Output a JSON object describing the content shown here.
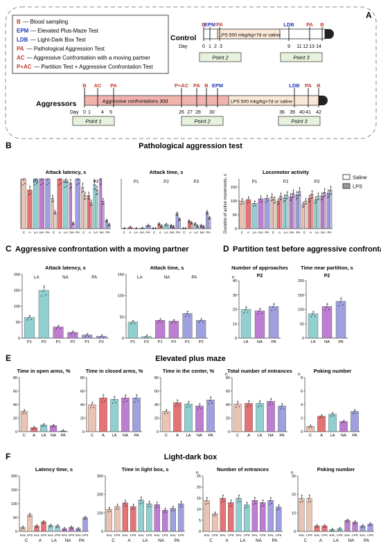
{
  "panel_letters": [
    "A",
    "B",
    "C",
    "D",
    "E",
    "F"
  ],
  "legend": [
    {
      "abbr": "B",
      "text": "— Blood sampling",
      "color": "#c0392b"
    },
    {
      "abbr": "EPM",
      "text": "— Elevated Plus-Maze Test",
      "color": "#2237b8"
    },
    {
      "abbr": "LDB",
      "text": "— Light-Dark Box Test",
      "color": "#2237b8"
    },
    {
      "abbr": "PA",
      "text": "— Pathological Aggression Test",
      "color": "#c0392b"
    },
    {
      "abbr": "AC",
      "text": "— Aggressive Confrontation with a moving partner",
      "color": "#c0392b"
    },
    {
      "abbr": "P+AC",
      "text": "— Partition Test + Aggressive Confrontation Test",
      "color": "#c0392b"
    }
  ],
  "control": {
    "label": "Control",
    "day_label": "Day",
    "top_marks": [
      "B",
      "EPM",
      "PA",
      "LDB",
      "PA",
      "B"
    ],
    "lps_text": "LPS 500 mkg/kg×7d or saline",
    "days": [
      "0",
      "1",
      "2",
      "3",
      "9",
      "11",
      "12",
      "13",
      "14"
    ],
    "points": [
      "Point 2",
      "Point 3"
    ]
  },
  "aggressors": {
    "label": "Aggressors",
    "day_label": "Day",
    "top_marks": [
      "B",
      "AC",
      "PA",
      "P+AC",
      "PA",
      "B",
      "EPM",
      "LDB",
      "PA",
      "B"
    ],
    "bar_text": "Aggressive confrontations 30d",
    "lps_text": "LPS 500 mkg/kg×7d or saline",
    "days": [
      "0",
      "1",
      "4",
      "5",
      "26",
      "27",
      "28",
      "30",
      "36",
      "39",
      "40",
      "41",
      "42"
    ],
    "points": [
      "Point 1",
      "Point 2",
      "Point 3"
    ]
  },
  "section_titles": {
    "B": "Pathological aggression test",
    "C": "Aggressive confrontation with a moving partner",
    "D": "Partition test before aggressive confrontation",
    "E": "Elevated plus maze",
    "F": "Light-dark box"
  },
  "colors": {
    "C": "#e8b8a6",
    "A": "#e05a5e",
    "LA": "#7ec7c9",
    "NA": "#b266c9",
    "PA": "#8e8fd8",
    "saline_legend": "#ffffff",
    "lps_legend": "#999999",
    "dashed_border": "#888888",
    "green_box": "#e6f2de",
    "pink_bar": "#f2b3ad",
    "lps_box": "#fbe7d6"
  },
  "legend_B": {
    "saline": "Saline",
    "lps": "LPS"
  },
  "chart_data": [
    {
      "id": "B1",
      "type": "bar",
      "title": "Attack latency, s",
      "groups": [
        "P1",
        "P2",
        "P3"
      ],
      "categories": [
        "C",
        "A",
        "LA",
        "NA",
        "PA",
        "C",
        "A",
        "LA",
        "NA",
        "PA",
        "C",
        "A",
        "LA",
        "NA",
        "PA"
      ],
      "series": [
        {
          "name": "Saline",
          "values": [
            180,
            140,
            180,
            180,
            180,
            110,
            180,
            170,
            165,
            180,
            150,
            120,
            160,
            180,
            30
          ]
        },
        {
          "name": "LPS",
          "values": [
            null,
            null,
            null,
            null,
            null,
            60,
            null,
            null,
            20,
            null,
            120,
            95,
            140,
            100,
            15
          ]
        }
      ],
      "ylim": [
        0,
        180
      ]
    },
    {
      "id": "B2",
      "type": "bar",
      "title": "Attack time, s",
      "groups": [
        "P1",
        "P2",
        "P3"
      ],
      "categories": [
        "C",
        "A",
        "LA",
        "NA",
        "PA",
        "C",
        "A",
        "LA",
        "NA",
        "PA",
        "C",
        "A",
        "LA",
        "NA",
        "PA"
      ],
      "series": [
        {
          "name": "Saline",
          "values": [
            0,
            5,
            0,
            2,
            12,
            0,
            18,
            15,
            12,
            55,
            0,
            28,
            18,
            12,
            60
          ]
        },
        {
          "name": "LPS",
          "values": [
            null,
            null,
            null,
            null,
            null,
            0,
            10,
            null,
            8,
            35,
            0,
            22,
            10,
            8,
            40
          ]
        }
      ],
      "ylim": [
        0,
        180
      ]
    },
    {
      "id": "B3",
      "type": "bar",
      "title": "Locomotor activity",
      "ylabel": "Duration of active movements, s",
      "groups": [
        "P1",
        "P2",
        "P3"
      ],
      "categories": [
        "C",
        "A",
        "LA",
        "NA",
        "PA",
        "C",
        "A",
        "LA",
        "NA",
        "PA",
        "C",
        "A",
        "LA",
        "NA",
        "PA"
      ],
      "series": [
        {
          "name": "Saline",
          "values": [
            100,
            105,
            92,
            108,
            110,
            115,
            100,
            112,
            115,
            122,
            88,
            110,
            105,
            118,
            128
          ]
        },
        {
          "name": "LPS",
          "values": [
            null,
            null,
            null,
            null,
            null,
            105,
            118,
            122,
            128,
            135,
            100,
            125,
            118,
            132,
            140
          ]
        }
      ],
      "ylim": [
        0,
        180
      ]
    },
    {
      "id": "C1",
      "type": "bar",
      "title": "Attack latency, s",
      "categories": [
        "P1",
        "P2",
        "P1",
        "P2",
        "P1",
        "P2"
      ],
      "groups": [
        "LA",
        "NA",
        "PA"
      ],
      "values": [
        65,
        150,
        35,
        18,
        10,
        6
      ],
      "ylim": [
        0,
        200
      ]
    },
    {
      "id": "C2",
      "type": "bar",
      "title": "Attack time, s",
      "categories": [
        "P1",
        "P2",
        "P1",
        "P2",
        "P1",
        "P2"
      ],
      "groups": [
        "LA",
        "NA",
        "PA"
      ],
      "values": [
        38,
        4,
        42,
        40,
        58,
        42
      ],
      "ylim": [
        0,
        150
      ]
    },
    {
      "id": "D1",
      "type": "bar",
      "title": "Number of approaches",
      "subtitle": "P2",
      "ylabel": "n",
      "categories": [
        "LA",
        "NA",
        "PA"
      ],
      "values": [
        20,
        19,
        22
      ],
      "ylim": [
        0,
        40
      ]
    },
    {
      "id": "D2",
      "type": "bar",
      "title": "Time near partition, s",
      "subtitle": "P2",
      "categories": [
        "LA",
        "NA",
        "PA"
      ],
      "values": [
        85,
        110,
        128
      ],
      "ylim": [
        0,
        200
      ]
    },
    {
      "id": "E1",
      "type": "bar",
      "title": "Time in open arms, %",
      "categories": [
        "C",
        "A",
        "LA",
        "NA",
        "PA"
      ],
      "values": [
        30,
        6,
        10,
        9,
        1
      ],
      "ylim": [
        0,
        80
      ]
    },
    {
      "id": "E2",
      "type": "bar",
      "title": "Time in closed arms, %",
      "categories": [
        "C",
        "A",
        "LA",
        "NA",
        "PA"
      ],
      "values": [
        40,
        50,
        48,
        50,
        50
      ],
      "ylim": [
        0,
        80
      ]
    },
    {
      "id": "E3",
      "type": "bar",
      "title": "Time in the center, %",
      "categories": [
        "C",
        "A",
        "LA",
        "NA",
        "PA"
      ],
      "values": [
        30,
        43,
        41,
        38,
        47
      ],
      "ylim": [
        0,
        80
      ]
    },
    {
      "id": "E4",
      "type": "bar",
      "title": "Total number of entrances",
      "ylabel": "n",
      "categories": [
        "C",
        "A",
        "LA",
        "NA",
        "PA"
      ],
      "values": [
        41,
        42,
        42,
        45,
        38
      ],
      "ylim": [
        0,
        80
      ]
    },
    {
      "id": "E5",
      "type": "bar",
      "title": "Poking number",
      "ylabel": "n",
      "categories": [
        "C",
        "A",
        "LA",
        "NA",
        "PA"
      ],
      "values": [
        0.8,
        2.3,
        2.6,
        1.5,
        3.0
      ],
      "ylim": [
        0,
        8
      ]
    },
    {
      "id": "F1",
      "type": "bar",
      "title": "Latency time, s",
      "groups": [
        "C",
        "A",
        "LA",
        "NA",
        "PA"
      ],
      "categories": [
        "SAL",
        "LPS",
        "SAL",
        "LPS",
        "SAL",
        "LPS",
        "SAL",
        "LPS",
        "SAL",
        "LPS"
      ],
      "values": [
        15,
        60,
        20,
        35,
        22,
        20,
        10,
        15,
        10,
        50
      ],
      "ylim": [
        0,
        200
      ]
    },
    {
      "id": "F2",
      "type": "bar",
      "title": "Time in light box, s",
      "groups": [
        "C",
        "A",
        "LA",
        "NA",
        "PA"
      ],
      "categories": [
        "SAL",
        "LPS",
        "SAL",
        "LPS",
        "SAL",
        "LPS",
        "SAL",
        "LPS",
        "SAL",
        "LPS"
      ],
      "values": [
        120,
        135,
        155,
        135,
        170,
        150,
        145,
        115,
        125,
        150
      ],
      "ylim": [
        0,
        300
      ]
    },
    {
      "id": "F3",
      "type": "bar",
      "title": "Number of entrances",
      "ylabel": "n",
      "groups": [
        "C",
        "A",
        "LA",
        "NA",
        "PA"
      ],
      "categories": [
        "SAL",
        "LPS",
        "SAL",
        "LPS",
        "SAL",
        "LPS",
        "SAL",
        "LPS",
        "SAL",
        "LPS"
      ],
      "values": [
        14,
        8,
        15,
        13,
        15,
        12,
        14,
        13,
        14,
        11
      ],
      "ylim": [
        0,
        25
      ]
    },
    {
      "id": "F4",
      "type": "bar",
      "title": "Poking number",
      "ylabel": "n",
      "groups": [
        "C",
        "A",
        "LA",
        "NA",
        "PA"
      ],
      "categories": [
        "SAL",
        "LPS",
        "SAL",
        "LPS",
        "SAL",
        "LPS",
        "SAL",
        "LPS",
        "SAL",
        "LPS"
      ],
      "values": [
        18,
        18,
        3,
        3,
        1,
        1.5,
        6,
        5,
        3,
        4
      ],
      "ylim": [
        0,
        30
      ]
    }
  ]
}
